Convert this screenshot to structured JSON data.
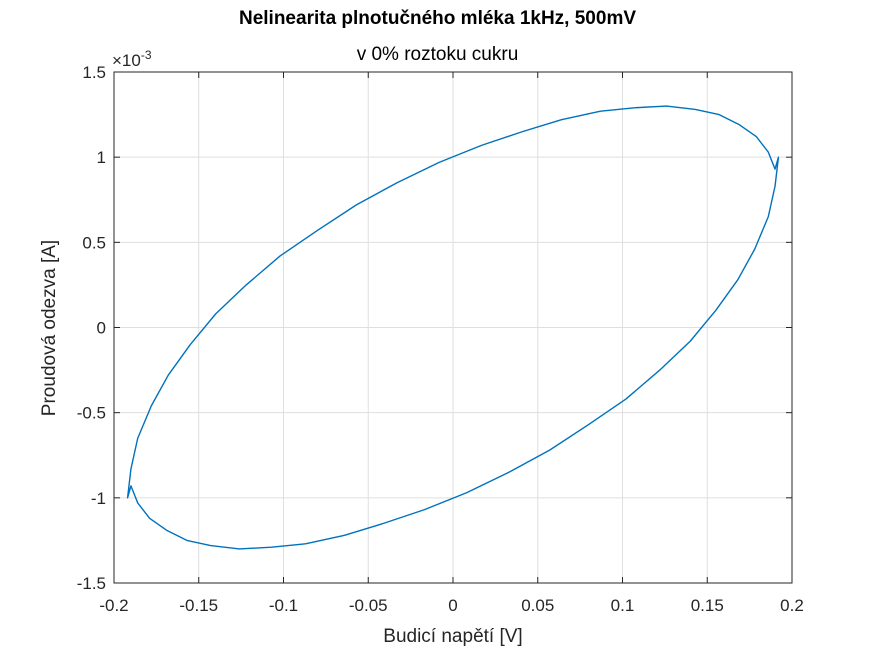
{
  "chart_data": {
    "type": "line",
    "title": "Nelinearita plnotučného mléka 1kHz, 500mV",
    "subtitle": "v 0% roztoku cukru",
    "xlabel": "Budicí napětí [V]",
    "ylabel": "Proudová odezva [A]",
    "xlim": [
      -0.2,
      0.2
    ],
    "ylim": [
      -0.0015,
      0.0015
    ],
    "y_exponent_label": "×10",
    "y_exponent_power": "-3",
    "xticks": [
      -0.2,
      -0.15,
      -0.1,
      -0.05,
      0,
      0.05,
      0.1,
      0.15,
      0.2
    ],
    "xtick_labels": [
      "-0.2",
      "-0.15",
      "-0.1",
      "-0.05",
      "0",
      "0.05",
      "0.1",
      "0.15",
      "0.2"
    ],
    "yticks": [
      -0.0015,
      -0.001,
      -0.0005,
      0,
      0.0005,
      0.001,
      0.0015
    ],
    "ytick_labels": [
      "-1.5",
      "-1",
      "-0.5",
      "0",
      "0.5",
      "1",
      "1.5"
    ],
    "grid": true,
    "series": [
      {
        "color": "#0072BD",
        "x": [
          0.192,
          0.19,
          0.186,
          0.178,
          0.168,
          0.155,
          0.14,
          0.122,
          0.102,
          0.08,
          0.057,
          0.033,
          0.008,
          -0.017,
          -0.041,
          -0.064,
          -0.087,
          -0.107,
          -0.126,
          -0.143,
          -0.157,
          -0.169,
          -0.179,
          -0.186,
          -0.19,
          -0.192,
          -0.19,
          -0.186,
          -0.178,
          -0.168,
          -0.155,
          -0.14,
          -0.122,
          -0.102,
          -0.08,
          -0.057,
          -0.033,
          -0.008,
          0.017,
          0.041,
          0.064,
          0.087,
          0.107,
          0.126,
          0.143,
          0.157,
          0.169,
          0.179,
          0.186,
          0.19,
          0.192
        ],
        "y": [
          0.001,
          0.00083,
          0.00065,
          0.00046,
          0.00028,
          0.0001,
          -8e-05,
          -0.00025,
          -0.00042,
          -0.00057,
          -0.00072,
          -0.00085,
          -0.00097,
          -0.00107,
          -0.00115,
          -0.00122,
          -0.00127,
          -0.00129,
          -0.0013,
          -0.00128,
          -0.00125,
          -0.00119,
          -0.00112,
          -0.00103,
          -0.00093,
          -0.001,
          -0.00083,
          -0.00065,
          -0.00046,
          -0.00028,
          -0.0001,
          8e-05,
          0.00025,
          0.00042,
          0.00057,
          0.00072,
          0.00085,
          0.00097,
          0.00107,
          0.00115,
          0.00122,
          0.00127,
          0.00129,
          0.0013,
          0.00128,
          0.00125,
          0.00119,
          0.00112,
          0.00103,
          0.00093,
          0.001
        ]
      }
    ]
  }
}
